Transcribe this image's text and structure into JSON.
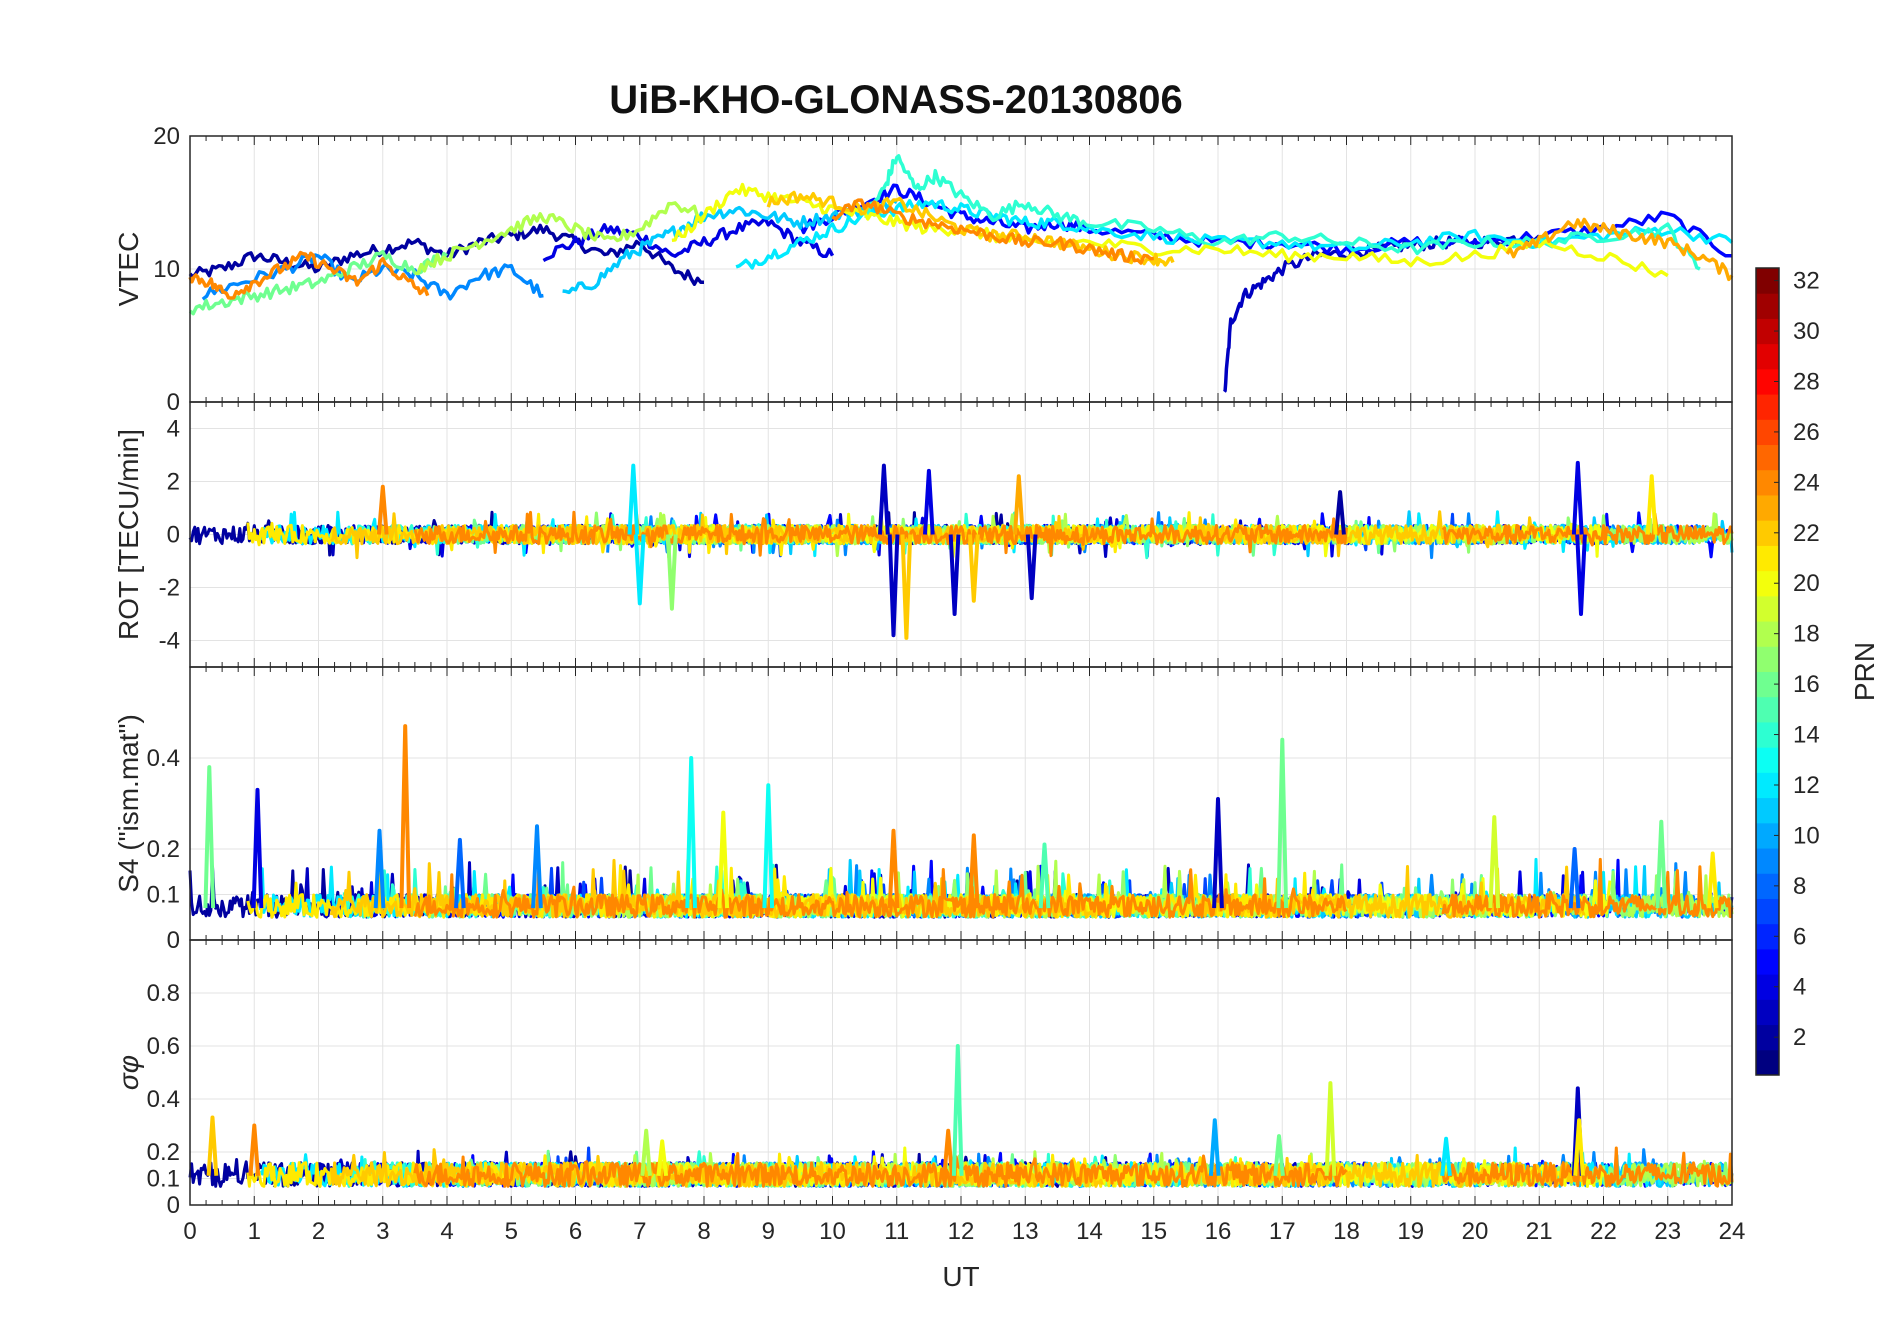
{
  "chart_data": {
    "type": "line",
    "title": "UiB-KHO-GLONASS-20130806",
    "xlabel": "UT",
    "xlim": [
      0,
      24
    ],
    "x_ticks": [
      "0",
      "1",
      "2",
      "3",
      "4",
      "5",
      "6",
      "7",
      "8",
      "9",
      "10",
      "11",
      "12",
      "13",
      "14",
      "15",
      "16",
      "17",
      "18",
      "19",
      "20",
      "21",
      "22",
      "23",
      "24"
    ],
    "colorbar": {
      "label": "PRN",
      "range": [
        1,
        32
      ],
      "ticks": [
        "2",
        "4",
        "6",
        "8",
        "10",
        "12",
        "14",
        "16",
        "18",
        "20",
        "22",
        "24",
        "26",
        "28",
        "30",
        "32"
      ],
      "colormap": "jet"
    },
    "panels": [
      {
        "key": "vtec",
        "ylabel": "VTEC",
        "ylim": [
          0,
          20
        ],
        "y_ticks": [
          0,
          10,
          20
        ],
        "y_tick_labels": [
          "0",
          "10",
          "20"
        ],
        "series": [
          {
            "prn": 2,
            "x": [
              0,
              0.5,
              1,
              1.5,
              2,
              2.5,
              3,
              3.5,
              4,
              4.5,
              5,
              5.5,
              6,
              6.5,
              7,
              7.5,
              8
            ],
            "y": [
              9.5,
              10,
              11,
              10.5,
              10,
              11,
              11.5,
              12,
              11,
              12,
              12.5,
              13,
              12,
              11,
              12,
              10,
              9
            ]
          },
          {
            "prn": 4,
            "x": [
              5.5,
              6,
              6.5,
              7,
              7.5,
              8,
              8.5,
              9,
              9.5,
              10
            ],
            "y": [
              11,
              12,
              13,
              12.5,
              11,
              12,
              13,
              13.5,
              12,
              11
            ]
          },
          {
            "prn": 3,
            "x": [
              16.1,
              16.2,
              16.4,
              16.7,
              17,
              17.5,
              18,
              18.5,
              19,
              19.5,
              20,
              20.5,
              21
            ],
            "y": [
              0.5,
              6,
              8,
              9,
              10,
              11,
              11.2,
              11.5,
              11.8,
              12,
              12,
              12.2,
              12.5
            ]
          },
          {
            "prn": 5,
            "x": [
              9.5,
              10,
              10.5,
              11,
              11.5,
              12,
              12.5,
              13,
              13.5,
              14,
              15,
              16,
              17,
              18,
              19,
              20,
              21,
              22,
              23,
              24
            ],
            "y": [
              13,
              14,
              15,
              16,
              15,
              14,
              13.5,
              13,
              13.5,
              13,
              12.5,
              12,
              12,
              11.5,
              12,
              12,
              12.5,
              13,
              14,
              11
            ]
          },
          {
            "prn": 9,
            "x": [
              0.2,
              0.8,
              1.5,
              2,
              2.5,
              3,
              3.5,
              4,
              4.5,
              5,
              5.5
            ],
            "y": [
              8,
              9,
              10,
              11,
              9,
              10,
              9.5,
              8,
              9.5,
              10,
              8
            ]
          },
          {
            "prn": 11,
            "x": [
              5.8,
              6.3,
              6.8,
              7.2,
              7.6,
              8,
              8.5,
              9,
              9.5,
              10,
              10.5,
              11
            ],
            "y": [
              8,
              9,
              11,
              12,
              13,
              14,
              14.5,
              14,
              13.5,
              14,
              14.5,
              15
            ]
          },
          {
            "prn": 12,
            "x": [
              8.5,
              9,
              9.5,
              10,
              10.5,
              11,
              11.5,
              12,
              12.5,
              13,
              13.5,
              14,
              15,
              16,
              17,
              18,
              19,
              20,
              21,
              22,
              23,
              24
            ],
            "y": [
              10,
              11,
              12,
              13,
              14,
              14.5,
              15,
              14.5,
              14,
              13.5,
              13.5,
              13,
              12.5,
              12,
              12,
              11.5,
              12,
              12.5,
              12,
              12.5,
              13,
              12
            ]
          },
          {
            "prn": 14,
            "x": [
              10.5,
              10.8,
              11,
              11.3,
              11.6,
              12,
              12.5,
              13,
              13.5,
              14,
              15,
              16,
              17,
              18,
              19,
              20,
              21,
              22,
              23,
              23.5
            ],
            "y": [
              14,
              16,
              18.5,
              16,
              17,
              15.5,
              14,
              15,
              14,
              13.5,
              13,
              12,
              12.5,
              12,
              11.5,
              12,
              12,
              12.5,
              13,
              10
            ]
          },
          {
            "prn": 16,
            "x": [
              0,
              0.5,
              1,
              1.5,
              2,
              2.5,
              3,
              3.5,
              4
            ],
            "y": [
              7,
              7.5,
              8,
              8.5,
              9,
              10,
              11,
              10,
              11
            ]
          },
          {
            "prn": 18,
            "x": [
              3.5,
              4,
              4.5,
              5,
              5.5,
              6,
              6.5,
              7,
              7.5,
              8
            ],
            "y": [
              10,
              11,
              12,
              13,
              14,
              13,
              12,
              13,
              15,
              14
            ]
          },
          {
            "prn": 20,
            "x": [
              7.5,
              8,
              8.5,
              9,
              9.5,
              10,
              10.5,
              11,
              11.5,
              12,
              12.5,
              13,
              14,
              15,
              16,
              17,
              18,
              19,
              20,
              21,
              22,
              23
            ],
            "y": [
              12,
              14,
              16,
              15.5,
              15,
              14.5,
              14,
              13.5,
              13,
              13,
              12.5,
              12,
              12,
              11.5,
              11.5,
              11,
              11,
              10.5,
              11,
              12,
              11,
              9.5
            ]
          },
          {
            "prn": 22,
            "x": [
              9,
              9.5,
              10,
              10.5,
              11,
              11.5,
              12,
              12.5,
              13,
              13.5,
              14,
              14.5,
              15,
              15.3
            ],
            "y": [
              15,
              15.5,
              15,
              14.5,
              15,
              14,
              13,
              12.5,
              12.5,
              12,
              11.5,
              11,
              10.8,
              10.5
            ]
          },
          {
            "prn": 23,
            "x": [
              20.5,
              21,
              21.5,
              22,
              22.5,
              23,
              23.5,
              24
            ],
            "y": [
              11,
              12,
              13.5,
              13,
              12.5,
              12,
              11,
              9.5
            ]
          },
          {
            "prn": 24,
            "x": [
              0,
              0.3,
              0.6,
              1,
              1.4,
              1.8,
              2.2,
              2.6,
              3,
              3.4,
              3.7
            ],
            "y": [
              9.5,
              9,
              8,
              9,
              10,
              11,
              10,
              9,
              10.5,
              9,
              8
            ]
          },
          {
            "prn": 24,
            "x": [
              10,
              10.5,
              11,
              11.5,
              12,
              12.5,
              13,
              13.5,
              14,
              14.5,
              15
            ],
            "y": [
              14,
              15,
              14,
              13.5,
              13,
              12.5,
              12,
              12,
              11.5,
              11,
              10.8
            ]
          }
        ]
      },
      {
        "key": "rot",
        "ylabel": "ROT [TECU/min]",
        "ylim": [
          -5,
          5
        ],
        "y_ticks": [
          -4,
          -2,
          0,
          2,
          4
        ],
        "y_tick_labels": [
          "-4",
          "-2",
          "0",
          "2",
          "4"
        ],
        "noise_amplitude": 0.35,
        "spikes": [
          {
            "t": 6.9,
            "v": 2.6,
            "prn": 12
          },
          {
            "t": 7.0,
            "v": -2.6,
            "prn": 12
          },
          {
            "t": 7.5,
            "v": -2.8,
            "prn": 17
          },
          {
            "t": 10.8,
            "v": 2.6,
            "prn": 3
          },
          {
            "t": 10.95,
            "v": -3.8,
            "prn": 3
          },
          {
            "t": 11.15,
            "v": -3.9,
            "prn": 22
          },
          {
            "t": 11.5,
            "v": 2.4,
            "prn": 4
          },
          {
            "t": 11.9,
            "v": -3.0,
            "prn": 3
          },
          {
            "t": 12.2,
            "v": -2.5,
            "prn": 22
          },
          {
            "t": 12.9,
            "v": 2.2,
            "prn": 23
          },
          {
            "t": 13.1,
            "v": -2.4,
            "prn": 3
          },
          {
            "t": 3.0,
            "v": 1.8,
            "prn": 24
          },
          {
            "t": 17.9,
            "v": 1.6,
            "prn": 2
          },
          {
            "t": 21.6,
            "v": 2.7,
            "prn": 4
          },
          {
            "t": 21.65,
            "v": -3.0,
            "prn": 4
          },
          {
            "t": 22.75,
            "v": 2.2,
            "prn": 21
          }
        ]
      },
      {
        "key": "s4",
        "ylabel": "S4 (\"ism.mat\")",
        "ylim": [
          0,
          0.6
        ],
        "y_ticks": [
          0,
          0.1,
          0.2,
          0.4
        ],
        "y_tick_labels": [
          "0",
          "0.1",
          "0.2",
          "0.4"
        ],
        "baseline": 0.07,
        "spikes": [
          {
            "t": 0.3,
            "v": 0.38,
            "prn": 16
          },
          {
            "t": 1.05,
            "v": 0.33,
            "prn": 4
          },
          {
            "t": 3.35,
            "v": 0.47,
            "prn": 24
          },
          {
            "t": 2.95,
            "v": 0.24,
            "prn": 9
          },
          {
            "t": 4.2,
            "v": 0.22,
            "prn": 8
          },
          {
            "t": 5.4,
            "v": 0.25,
            "prn": 9
          },
          {
            "t": 7.8,
            "v": 0.4,
            "prn": 13
          },
          {
            "t": 8.3,
            "v": 0.28,
            "prn": 20
          },
          {
            "t": 9.0,
            "v": 0.34,
            "prn": 13
          },
          {
            "t": 10.95,
            "v": 0.24,
            "prn": 24
          },
          {
            "t": 12.2,
            "v": 0.23,
            "prn": 24
          },
          {
            "t": 13.3,
            "v": 0.21,
            "prn": 15
          },
          {
            "t": 16.0,
            "v": 0.31,
            "prn": 3
          },
          {
            "t": 17.0,
            "v": 0.44,
            "prn": 16
          },
          {
            "t": 20.3,
            "v": 0.27,
            "prn": 19
          },
          {
            "t": 21.55,
            "v": 0.2,
            "prn": 8
          },
          {
            "t": 22.9,
            "v": 0.26,
            "prn": 16
          },
          {
            "t": 23.7,
            "v": 0.19,
            "prn": 21
          }
        ]
      },
      {
        "key": "sigphi",
        "ylabel": "σφ",
        "ylim": [
          0,
          1
        ],
        "y_ticks": [
          0,
          0.1,
          0.2,
          0.4,
          0.6,
          0.8
        ],
        "y_tick_labels": [
          "0",
          "0.1",
          "0.2",
          "0.4",
          "0.6",
          "0.8"
        ],
        "baseline": 0.11,
        "spikes": [
          {
            "t": 0.35,
            "v": 0.33,
            "prn": 22
          },
          {
            "t": 1.0,
            "v": 0.3,
            "prn": 24
          },
          {
            "t": 7.1,
            "v": 0.28,
            "prn": 18
          },
          {
            "t": 7.35,
            "v": 0.24,
            "prn": 20
          },
          {
            "t": 11.8,
            "v": 0.28,
            "prn": 24
          },
          {
            "t": 11.95,
            "v": 0.6,
            "prn": 15
          },
          {
            "t": 15.95,
            "v": 0.32,
            "prn": 10
          },
          {
            "t": 16.95,
            "v": 0.26,
            "prn": 16
          },
          {
            "t": 17.75,
            "v": 0.46,
            "prn": 19
          },
          {
            "t": 19.55,
            "v": 0.25,
            "prn": 12
          },
          {
            "t": 21.6,
            "v": 0.44,
            "prn": 3
          },
          {
            "t": 21.62,
            "v": 0.32,
            "prn": 21
          }
        ]
      }
    ]
  }
}
